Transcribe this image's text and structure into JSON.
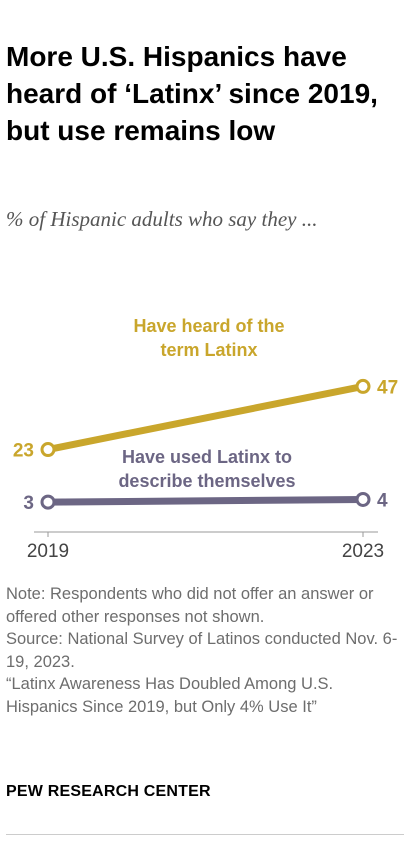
{
  "header": {
    "title": "More U.S. Hispanics have heard of ‘Latinx’ since 2019, but use remains low",
    "subtitle": "% of Hispanic adults who say they ..."
  },
  "chart_data": {
    "type": "line",
    "x": [
      "2019",
      "2023"
    ],
    "series": [
      {
        "name": "Have heard of the term Latinx",
        "label_lines": [
          "Have heard of the",
          "term Latinx"
        ],
        "values": [
          23,
          47
        ],
        "color": "#c9a62c"
      },
      {
        "name": "Have used Latinx to describe themselves",
        "label_lines": [
          "Have used Latinx to",
          "describe themselves"
        ],
        "values": [
          3,
          4
        ],
        "color": "#6c6684"
      }
    ],
    "title": "",
    "xlabel": "",
    "ylabel": "",
    "grid": false,
    "legend": "direct labels"
  },
  "footer": {
    "note": "Note: Respondents who did not offer an answer or offered other responses not shown.",
    "source": "Source: National Survey of Latinos conducted Nov. 6-19, 2023.",
    "report": "“Latinx Awareness Has Doubled Among U.S. Hispanics Since 2019, but Only 4% Use It”",
    "org": "PEW RESEARCH CENTER"
  }
}
